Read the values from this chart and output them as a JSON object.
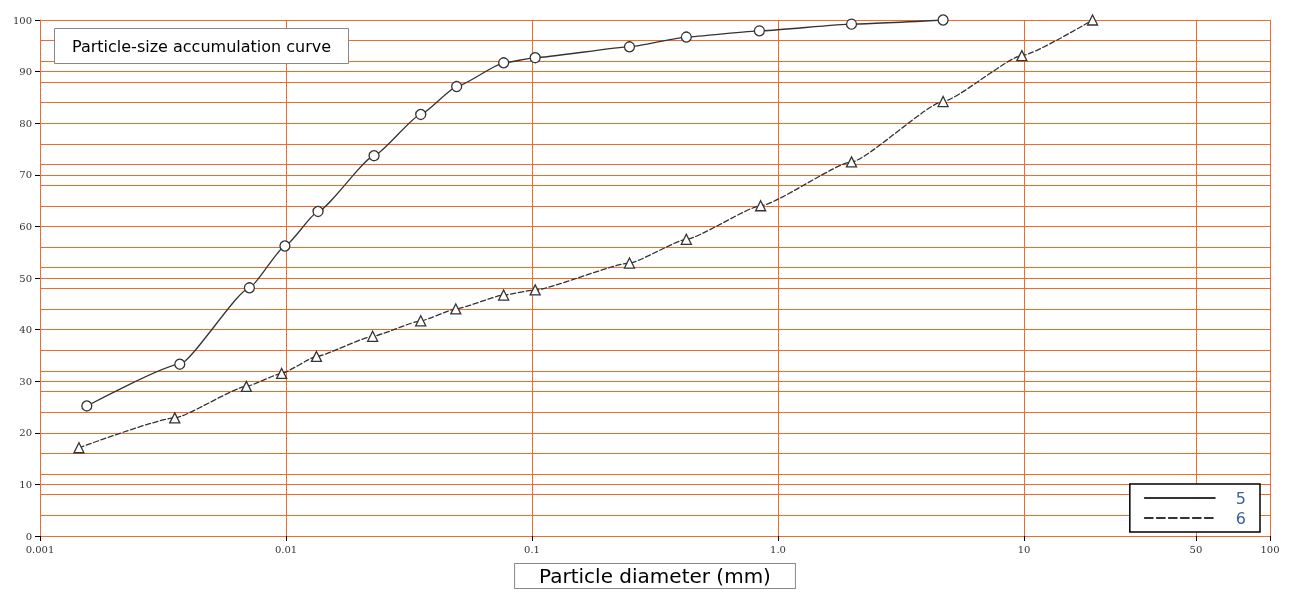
{
  "chart_data": {
    "type": "line",
    "title": "Particle-size accumulation curve",
    "xlabel": "Particle diameter (mm)",
    "log": "x",
    "grid": true,
    "legend": "bottom right",
    "xlim": [
      0.001,
      100
    ],
    "xticks": [
      0.001,
      0.01,
      0.1,
      {
        "value": 1,
        "label": "1.0"
      },
      10,
      50,
      100
    ],
    "ylim": [
      0,
      100
    ],
    "yticks": [
      0,
      10,
      20,
      30,
      40,
      50,
      60,
      70,
      80,
      90,
      100
    ],
    "series": [
      {
        "name": "5",
        "color": "#333333",
        "marker": "circle",
        "line_style": "solid",
        "x": [
          0.00155,
          0.0037,
          0.0071,
          0.0099,
          0.0135,
          0.0228,
          0.0353,
          0.0494,
          0.0767,
          0.103,
          0.249,
          0.424,
          0.84,
          1.99,
          4.69
        ],
        "values": [
          25.2,
          33.3,
          48.1,
          56.2,
          62.9,
          73.7,
          81.7,
          87.1,
          91.7,
          92.7,
          94.8,
          96.7,
          97.9,
          99.2,
          100
        ]
      },
      {
        "name": "6",
        "color": "#333333",
        "marker": "triangle",
        "line_style": "dashed",
        "x": [
          0.00144,
          0.00353,
          0.0069,
          0.0096,
          0.0133,
          0.0225,
          0.0353,
          0.049,
          0.0767,
          0.103,
          0.249,
          0.424,
          0.85,
          1.99,
          4.69,
          9.8,
          19
        ],
        "values": [
          17.1,
          22.9,
          29.0,
          31.5,
          34.8,
          38.7,
          41.7,
          44.0,
          46.7,
          47.7,
          52.9,
          57.5,
          64.0,
          72.5,
          84.2,
          93.1,
          100
        ]
      }
    ]
  }
}
